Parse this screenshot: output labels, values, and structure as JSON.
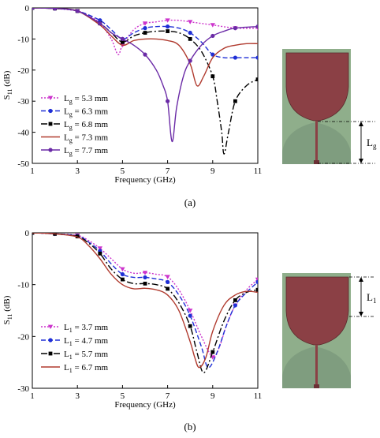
{
  "chart_data": [
    {
      "type": "line",
      "xlabel": "Frequency (GHz)",
      "ylabel_main": "S",
      "ylabel_sub": "11",
      "ylabel_unit": " (dB)",
      "xlim": [
        1,
        11
      ],
      "ylim": [
        -50,
        0
      ],
      "xticks": [
        1,
        3,
        5,
        7,
        9,
        11
      ],
      "yticks": [
        0,
        -10,
        -20,
        -30,
        -40,
        -50
      ],
      "legend_position": "bottom-left",
      "legend_var": "L",
      "legend_sub": "g",
      "caption": "(a)",
      "series": [
        {
          "name": " = 5.3 mm",
          "color": "#cc33cc",
          "dash": "2 2",
          "marker": "tri_down",
          "x": [
            1,
            2,
            3,
            3.5,
            4,
            4.5,
            4.8,
            5,
            5.5,
            6,
            6.5,
            7,
            7.5,
            8,
            9,
            10,
            11
          ],
          "y": [
            0,
            -0.2,
            -1,
            -2.5,
            -5,
            -10,
            -15,
            -12,
            -7,
            -5,
            -4.5,
            -4,
            -4,
            -4.5,
            -5.5,
            -6.5,
            -6.5
          ]
        },
        {
          "name": " = 6.3 mm",
          "color": "#1f2fd6",
          "dash": "6 3",
          "marker": "circle",
          "x": [
            1,
            2,
            3,
            4,
            4.5,
            5,
            5.5,
            6,
            6.5,
            7,
            7.5,
            8,
            8.5,
            9,
            9.5,
            10,
            10.5,
            11
          ],
          "y": [
            0,
            -0.2,
            -1,
            -4,
            -7,
            -10,
            -8,
            -6.5,
            -6,
            -6,
            -6.5,
            -8,
            -11,
            -15,
            -16,
            -16,
            -16,
            -16
          ]
        },
        {
          "name": " = 6.8 mm",
          "color": "#000000",
          "dash": "8 3 2 3",
          "marker": "square",
          "x": [
            1,
            2,
            3,
            4,
            4.5,
            5,
            5.5,
            6,
            6.5,
            7,
            7.5,
            8,
            8.5,
            9,
            9.2,
            9.4,
            9.5,
            9.7,
            10,
            10.5,
            11
          ],
          "y": [
            0,
            -0.2,
            -1,
            -5,
            -8,
            -11,
            -9,
            -8,
            -7.5,
            -7.5,
            -8,
            -10,
            -14,
            -22,
            -30,
            -40,
            -47,
            -40,
            -30,
            -25,
            -23
          ]
        },
        {
          "name": " = 7.3 mm",
          "color": "#b03a2e",
          "dash": "",
          "marker": "none",
          "x": [
            1,
            2,
            3,
            4,
            4.5,
            5,
            5.5,
            6,
            6.5,
            7,
            7.5,
            8,
            8.3,
            8.6,
            9,
            9.5,
            10,
            10.5,
            11
          ],
          "y": [
            0,
            -0.2,
            -1,
            -5.5,
            -9,
            -12,
            -10.5,
            -10,
            -10,
            -10.5,
            -12,
            -18,
            -25,
            -22,
            -16,
            -13,
            -12,
            -11.5,
            -11.5
          ]
        },
        {
          "name": " = 7.7 mm",
          "color": "#6a2aa6",
          "dash": "",
          "marker": "circle",
          "x": [
            1,
            2,
            3,
            4,
            4.5,
            5,
            5.5,
            6,
            6.5,
            6.8,
            7,
            7.2,
            7.4,
            7.7,
            8,
            8.5,
            9,
            9.5,
            10,
            11
          ],
          "y": [
            0,
            -0.2,
            -1,
            -5,
            -8,
            -10,
            -12,
            -15,
            -20,
            -25,
            -30,
            -43,
            -32,
            -22,
            -17,
            -12,
            -9,
            -7.5,
            -6.5,
            -6
          ]
        }
      ]
    },
    {
      "type": "line",
      "xlabel": "Frequency (GHz)",
      "ylabel_main": "S",
      "ylabel_sub": "11",
      "ylabel_unit": " (dB)",
      "xlim": [
        1,
        11
      ],
      "ylim": [
        -30,
        0
      ],
      "xticks": [
        1,
        3,
        5,
        7,
        9,
        11
      ],
      "yticks": [
        0,
        -10,
        -20,
        -30
      ],
      "legend_position": "bottom-left",
      "legend_var": "L",
      "legend_sub": "1",
      "caption": "(b)",
      "series": [
        {
          "name": " = 3.7 mm",
          "color": "#cc33cc",
          "dash": "2 2",
          "marker": "tri_down",
          "x": [
            1,
            2,
            3,
            3.5,
            4,
            4.5,
            5,
            5.5,
            6,
            6.5,
            7,
            7.5,
            8,
            8.5,
            9,
            9.3,
            9.6,
            10,
            10.5,
            11
          ],
          "y": [
            0,
            -0.2,
            -0.5,
            -1.5,
            -3,
            -5,
            -7,
            -7.8,
            -7.7,
            -8,
            -8.5,
            -11,
            -15,
            -20,
            -24,
            -22,
            -18,
            -14,
            -11,
            -9
          ]
        },
        {
          "name": " = 4.7 mm",
          "color": "#1f2fd6",
          "dash": "6 3",
          "marker": "circle",
          "x": [
            1,
            2,
            3,
            3.5,
            4,
            4.5,
            5,
            5.5,
            6,
            6.5,
            7,
            7.5,
            8,
            8.5,
            8.8,
            9.2,
            9.6,
            10,
            10.5,
            11
          ],
          "y": [
            0,
            -0.2,
            -0.6,
            -1.8,
            -3.5,
            -6,
            -8,
            -8.6,
            -8.6,
            -8.9,
            -9.5,
            -12,
            -16,
            -22,
            -26,
            -23,
            -18,
            -14,
            -11.5,
            -9.5
          ]
        },
        {
          "name": " = 5.7 mm",
          "color": "#000000",
          "dash": "8 3 2 3",
          "marker": "square",
          "x": [
            1,
            2,
            3,
            3.5,
            4,
            4.5,
            5,
            5.5,
            6,
            6.5,
            7,
            7.5,
            8,
            8.3,
            8.6,
            9,
            9.5,
            10,
            10.5,
            11
          ],
          "y": [
            0,
            -0.2,
            -0.7,
            -2,
            -4,
            -7,
            -9,
            -9.8,
            -9.8,
            -10,
            -10.8,
            -13.5,
            -18,
            -23,
            -27,
            -23,
            -17,
            -13,
            -11.5,
            -11
          ]
        },
        {
          "name": " = 6.7 mm",
          "color": "#b03a2e",
          "dash": "",
          "marker": "none",
          "x": [
            1,
            2,
            3,
            3.5,
            4,
            4.5,
            5,
            5.5,
            6,
            6.5,
            7,
            7.5,
            8,
            8.2,
            8.4,
            8.7,
            9,
            9.5,
            10,
            10.5,
            11
          ],
          "y": [
            0,
            -0.2,
            -0.8,
            -2.5,
            -5,
            -8,
            -10,
            -10.8,
            -10.7,
            -11,
            -12,
            -15,
            -21,
            -24,
            -26,
            -24,
            -19,
            -14,
            -12,
            -11.3,
            -11.5
          ]
        }
      ]
    }
  ],
  "antenna_a": {
    "label_var": "L",
    "label_sub": "g"
  },
  "antenna_b": {
    "label_var": "L",
    "label_sub": "1"
  },
  "colors": {
    "patch": "#8b4045",
    "substrate": "#8fae8b",
    "ground": "#7d9a7d",
    "dim_line": "#000000"
  }
}
